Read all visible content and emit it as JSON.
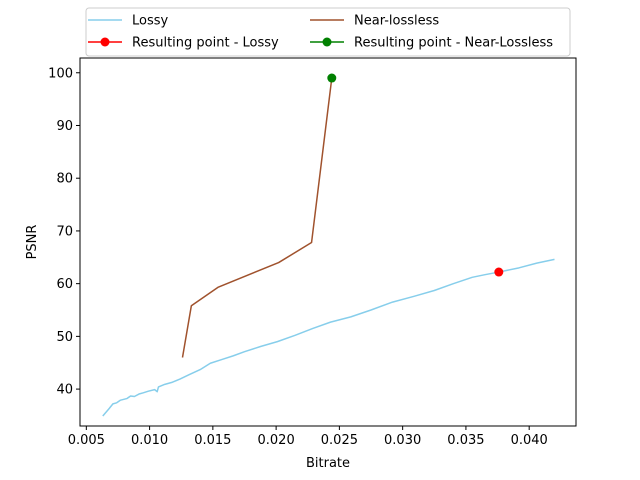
{
  "chart_data": {
    "type": "line",
    "title": "",
    "xlabel": "Bitrate",
    "ylabel": "PSNR",
    "xlim": [
      0.0045,
      0.0437
    ],
    "ylim": [
      33.0,
      102.8
    ],
    "xticks": [
      0.005,
      0.01,
      0.015,
      0.02,
      0.025,
      0.03,
      0.035,
      0.04
    ],
    "xtick_labels": [
      "0.005",
      "0.010",
      "0.015",
      "0.020",
      "0.025",
      "0.030",
      "0.035",
      "0.040"
    ],
    "yticks": [
      40,
      50,
      60,
      70,
      80,
      90,
      100
    ],
    "ytick_labels": [
      "40",
      "50",
      "60",
      "70",
      "80",
      "90",
      "100"
    ],
    "grid": false,
    "legend_position": "top (above plot)",
    "series": [
      {
        "name": "Lossy",
        "kind": "line",
        "color": "#87ceeb",
        "x": [
          0.0063,
          0.0068,
          0.0071,
          0.0074,
          0.0077,
          0.0082,
          0.0085,
          0.0088,
          0.0092,
          0.0095,
          0.0099,
          0.0104,
          0.0106,
          0.0107,
          0.0112,
          0.0118,
          0.0124,
          0.0131,
          0.014,
          0.0148,
          0.0157,
          0.0166,
          0.0175,
          0.0188,
          0.0201,
          0.0215,
          0.0229,
          0.0243,
          0.0259,
          0.0275,
          0.0292,
          0.0309,
          0.0325,
          0.034,
          0.0355,
          0.0365,
          0.0376,
          0.0392,
          0.0406,
          0.042
        ],
        "y": [
          34.9,
          36.3,
          37.2,
          37.4,
          37.9,
          38.2,
          38.7,
          38.6,
          39.1,
          39.3,
          39.6,
          39.9,
          39.5,
          40.4,
          40.9,
          41.3,
          41.9,
          42.7,
          43.7,
          44.9,
          45.6,
          46.3,
          47.1,
          48.1,
          49.0,
          50.2,
          51.5,
          52.7,
          53.7,
          55.0,
          56.5,
          57.6,
          58.7,
          60.0,
          61.2,
          61.7,
          62.2,
          63.0,
          63.9,
          64.6
        ]
      },
      {
        "name": "Near-lossless",
        "kind": "line",
        "color": "#a0522d",
        "x": [
          0.0126,
          0.0133,
          0.0154,
          0.0202,
          0.0228,
          0.0244
        ],
        "y": [
          46.0,
          55.8,
          59.3,
          64.0,
          67.8,
          99.0
        ]
      },
      {
        "name": "Resulting point - Lossy",
        "kind": "marker",
        "color": "#ff0000",
        "x": [
          0.0376
        ],
        "y": [
          62.2
        ]
      },
      {
        "name": "Resulting point - Near-Lossless",
        "kind": "marker",
        "color": "#008000",
        "x": [
          0.0244
        ],
        "y": [
          99.0
        ]
      }
    ]
  }
}
